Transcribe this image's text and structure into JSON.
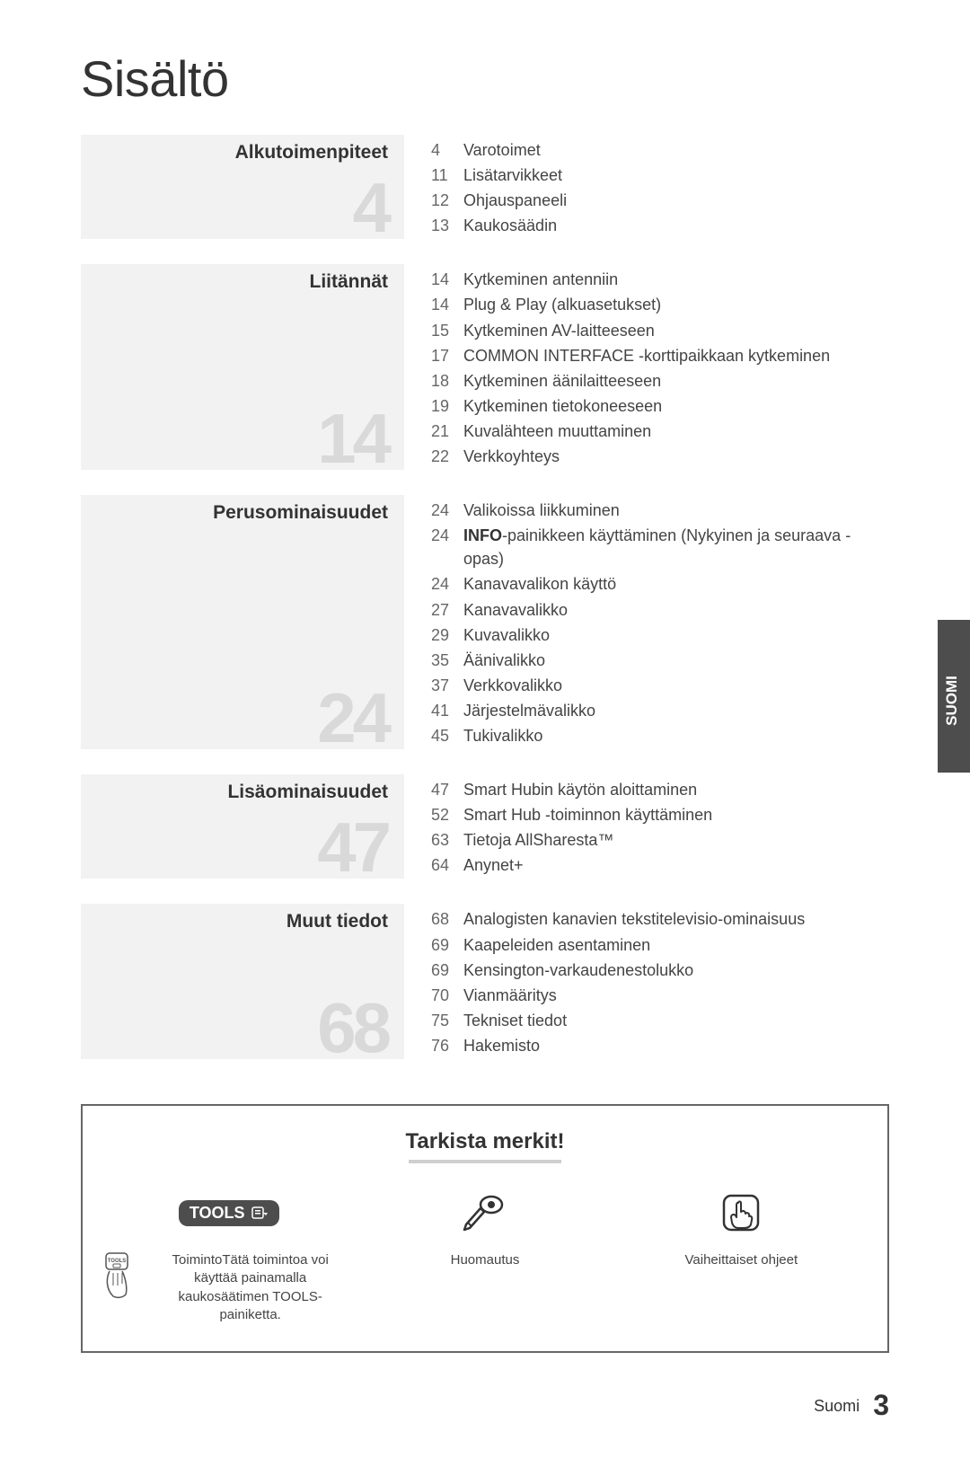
{
  "page_title": "Sisältö",
  "side_tab_label": "SUOMI",
  "sections": [
    {
      "heading": "Alkutoimenpiteet",
      "bignum": "4",
      "items": [
        {
          "page": "4",
          "label": "Varotoimet"
        },
        {
          "page": "11",
          "label": "Lisätarvikkeet"
        },
        {
          "page": "12",
          "label": "Ohjauspaneeli"
        },
        {
          "page": "13",
          "label": "Kaukosäädin"
        }
      ]
    },
    {
      "heading": "Liitännät",
      "bignum": "14",
      "items": [
        {
          "page": "14",
          "label": "Kytkeminen antenniin"
        },
        {
          "page": "14",
          "label": "Plug & Play (alkuasetukset)"
        },
        {
          "page": "15",
          "label": "Kytkeminen AV-laitteeseen"
        },
        {
          "page": "17",
          "label": "COMMON INTERFACE -korttipaikkaan kytkeminen"
        },
        {
          "page": "18",
          "label": "Kytkeminen äänilaitteeseen"
        },
        {
          "page": "19",
          "label": "Kytkeminen tietokoneeseen"
        },
        {
          "page": "21",
          "label": "Kuvalähteen muuttaminen"
        },
        {
          "page": "22",
          "label": "Verkkoyhteys"
        }
      ]
    },
    {
      "heading": "Perusominaisuudet",
      "bignum": "24",
      "items": [
        {
          "page": "24",
          "label": "Valikoissa liikkuminen"
        },
        {
          "page": "24",
          "label_html": "<b>INFO</b>-painikkeen käyttäminen (Nykyinen ja seuraava -opas)"
        },
        {
          "page": "24",
          "label": "Kanavavalikon käyttö"
        },
        {
          "page": "27",
          "label": "Kanavavalikko"
        },
        {
          "page": "29",
          "label": "Kuvavalikko"
        },
        {
          "page": "35",
          "label": "Äänivalikko"
        },
        {
          "page": "37",
          "label": "Verkkovalikko"
        },
        {
          "page": "41",
          "label": "Järjestelmävalikko"
        },
        {
          "page": "45",
          "label": "Tukivalikko"
        }
      ]
    },
    {
      "heading": "Lisäominaisuudet",
      "bignum": "47",
      "items": [
        {
          "page": "47",
          "label": "Smart Hubin käytön aloittaminen"
        },
        {
          "page": "52",
          "label": "Smart Hub -toiminnon käyttäminen"
        },
        {
          "page": "63",
          "label": "Tietoja AllSharesta™"
        },
        {
          "page": "64",
          "label": "Anynet+"
        }
      ]
    },
    {
      "heading": "Muut tiedot",
      "bignum": "68",
      "items": [
        {
          "page": "68",
          "label": "Analogisten kanavien tekstitelevisio-ominaisuus"
        },
        {
          "page": "69",
          "label": "Kaapeleiden asentaminen"
        },
        {
          "page": "69",
          "label": "Kensington-varkaudenestolukko"
        },
        {
          "page": "70",
          "label": "Vianmääritys"
        },
        {
          "page": "75",
          "label": "Tekniset tiedot"
        },
        {
          "page": "76",
          "label": "Hakemisto"
        }
      ]
    }
  ],
  "check_box": {
    "title": "Tarkista merkit!",
    "col1_pill": "TOOLS",
    "col1_caption": "ToimintoTätä toimintoa voi käyttää painamalla kaukosäätimen TOOLS-painiketta.",
    "col1_remote_label": "TOOLS",
    "col2_caption": "Huomautus",
    "col3_caption": "Vaiheittaiset ohjeet"
  },
  "footer": {
    "language": "Suomi",
    "page_number": "3"
  },
  "colors": {
    "section_bg": "#f2f2f2",
    "bignum_color": "#d9d9d9",
    "side_tab_bg": "#4d4d4d",
    "text_color": "#333333"
  }
}
